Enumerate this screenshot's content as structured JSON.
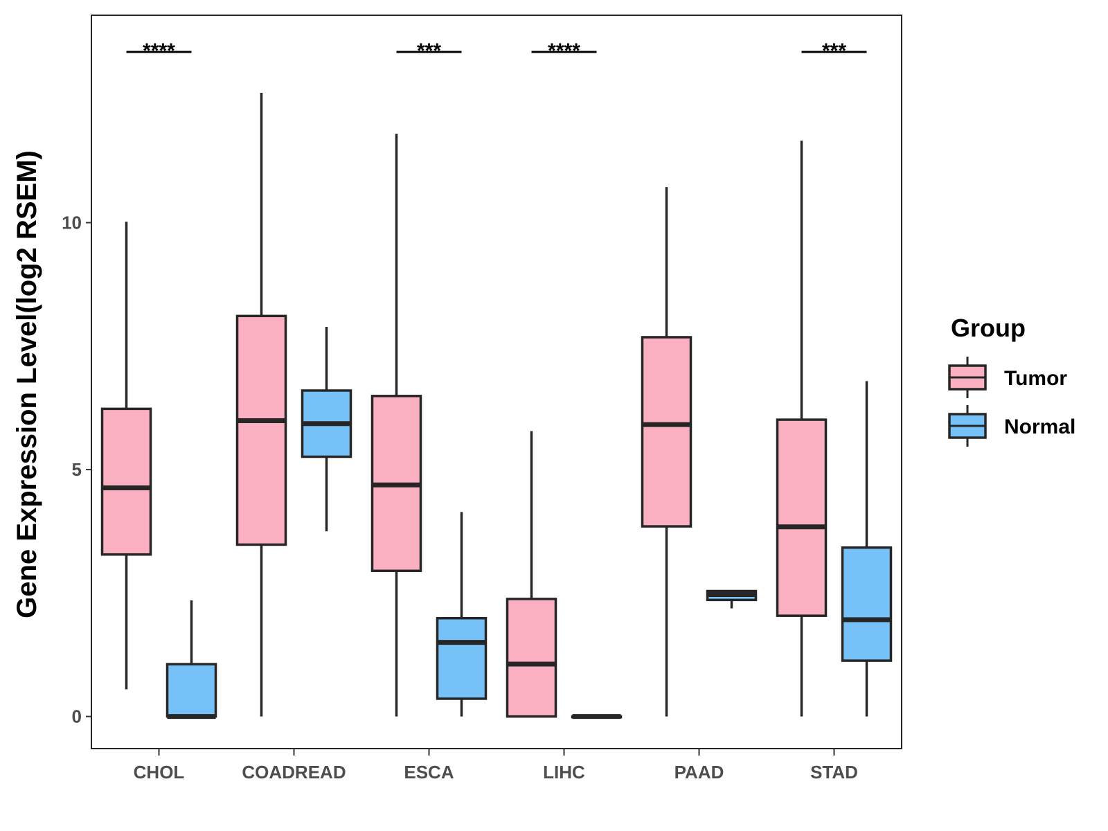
{
  "chart_data": {
    "type": "boxplot",
    "ylabel": "Gene Expression Level(log2 RSEM)",
    "xlabel": "",
    "ylim": [
      -0.65,
      14.2
    ],
    "yticks": [
      0,
      5,
      10
    ],
    "categories": [
      "CHOL",
      "COADREAD",
      "ESCA",
      "LIHC",
      "PAAD",
      "STAD"
    ],
    "legend": {
      "title": "Group",
      "position": "right",
      "entries": [
        {
          "name": "Tumor",
          "color": "#FBB0C2"
        },
        {
          "name": "Normal",
          "color": "#76C1F8"
        }
      ]
    },
    "series": [
      {
        "name": "Tumor",
        "color": "#FBB0C2",
        "boxes": [
          {
            "category": "CHOL",
            "min": 0.55,
            "q1": 3.28,
            "median": 4.63,
            "q3": 6.23,
            "max": 10.02
          },
          {
            "category": "COADREAD",
            "min": 0.0,
            "q1": 3.48,
            "median": 5.99,
            "q3": 8.11,
            "max": 12.63
          },
          {
            "category": "ESCA",
            "min": 0.0,
            "q1": 2.95,
            "median": 4.69,
            "q3": 6.49,
            "max": 11.8
          },
          {
            "category": "LIHC",
            "min": 0.0,
            "q1": 0.0,
            "median": 1.06,
            "q3": 2.38,
            "max": 5.78
          },
          {
            "category": "PAAD",
            "min": 0.0,
            "q1": 3.85,
            "median": 5.91,
            "q3": 7.68,
            "max": 10.72
          },
          {
            "category": "STAD",
            "min": 0.0,
            "q1": 2.04,
            "median": 3.84,
            "q3": 6.01,
            "max": 11.66
          }
        ]
      },
      {
        "name": "Normal",
        "color": "#76C1F8",
        "boxes": [
          {
            "category": "CHOL",
            "min": 0.0,
            "q1": 0.0,
            "median": 0.0,
            "q3": 1.06,
            "max": 2.35
          },
          {
            "category": "COADREAD",
            "min": 3.75,
            "q1": 5.26,
            "median": 5.93,
            "q3": 6.6,
            "max": 7.89
          },
          {
            "category": "ESCA",
            "min": 0.0,
            "q1": 0.36,
            "median": 1.5,
            "q3": 1.99,
            "max": 4.14
          },
          {
            "category": "LIHC",
            "min": 0.0,
            "q1": 0.0,
            "median": 0.0,
            "q3": 0.0,
            "max": 0.0
          },
          {
            "category": "PAAD",
            "min": 2.19,
            "q1": 2.36,
            "median": 2.47,
            "q3": 2.54,
            "max": 2.54
          },
          {
            "category": "STAD",
            "min": 0.0,
            "q1": 1.13,
            "median": 1.96,
            "q3": 3.42,
            "max": 6.79
          }
        ]
      }
    ],
    "significance": [
      {
        "category": "CHOL",
        "label": "****"
      },
      {
        "category": "ESCA",
        "label": "***"
      },
      {
        "category": "LIHC",
        "label": "****"
      },
      {
        "category": "STAD",
        "label": "***"
      }
    ]
  }
}
